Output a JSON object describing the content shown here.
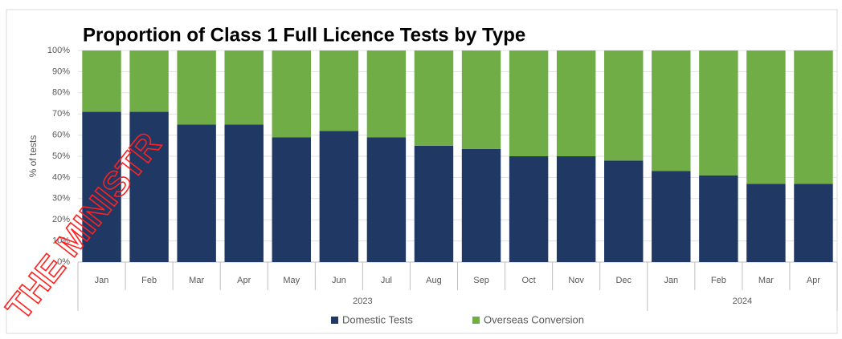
{
  "chart_data": {
    "type": "stacked_bar",
    "title": "Proportion of Class 1 Full Licence Tests by Type",
    "watermark": "THE MINISTR",
    "y_label": "% of tests",
    "groups": [
      {
        "label": "2023",
        "categories": [
          "Jan",
          "Feb",
          "Mar",
          "Apr",
          "May",
          "Jun",
          "Jul",
          "Aug",
          "Sep",
          "Oct",
          "Nov",
          "Dec"
        ]
      },
      {
        "label": "2024",
        "categories": [
          "Jan",
          "Feb",
          "Mar",
          "Apr"
        ]
      }
    ],
    "series": [
      {
        "name": "Domestic Tests",
        "color": "#1f3864",
        "values": [
          71,
          71,
          65,
          65,
          59,
          62,
          59,
          55,
          53.5,
          50,
          50,
          48,
          43,
          41,
          37,
          37
        ]
      },
      {
        "name": "Overseas Conversion",
        "color": "#70ad47",
        "values": [
          29,
          29,
          35,
          35,
          41,
          38,
          41,
          45,
          46.5,
          50,
          50,
          52,
          57,
          59,
          63,
          63
        ]
      }
    ],
    "ylim": [
      0,
      100
    ],
    "yticks": [
      {
        "value": 0,
        "label": "0%"
      },
      {
        "value": 10,
        "label": "10%"
      },
      {
        "value": 20,
        "label": "20%"
      },
      {
        "value": 30,
        "label": "30%"
      },
      {
        "value": 40,
        "label": "40%"
      },
      {
        "value": 50,
        "label": "50%"
      },
      {
        "value": 60,
        "label": "60%"
      },
      {
        "value": 70,
        "label": "70%"
      },
      {
        "value": 80,
        "label": "80%"
      },
      {
        "value": 90,
        "label": "90%"
      },
      {
        "value": 100,
        "label": "100%"
      }
    ],
    "legend": "bottom"
  }
}
